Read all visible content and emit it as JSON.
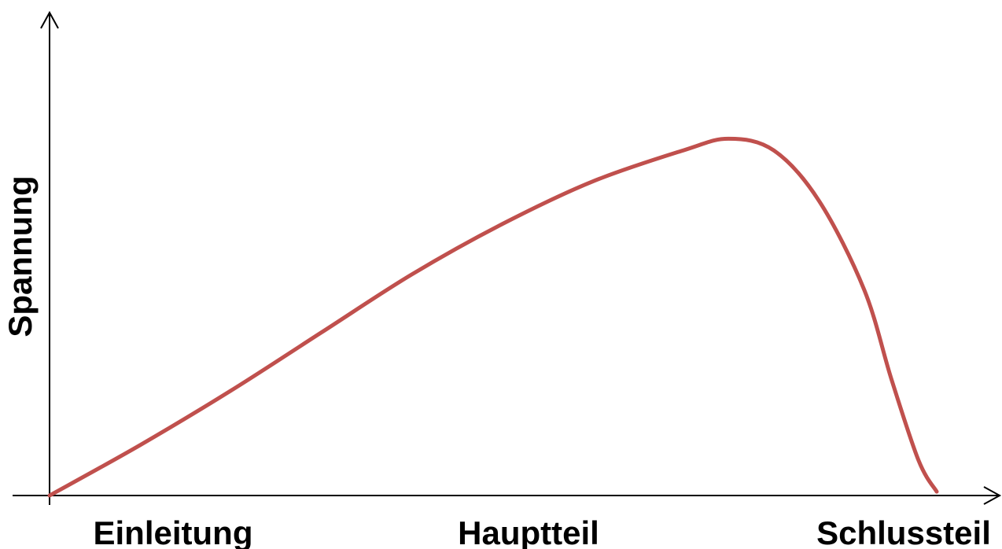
{
  "chart_data": {
    "type": "line",
    "title": "",
    "xlabel": "",
    "ylabel": "Spannung",
    "categories": [
      "Einleitung",
      "Hauptteil",
      "Schlussteil"
    ],
    "grid": false,
    "legend": "none",
    "colors": {
      "curve": "#c0504d",
      "axes": "#000000"
    },
    "xlim": [
      0,
      100
    ],
    "ylim": [
      0,
      100
    ],
    "series": [
      {
        "values": [
          [
            0,
            0
          ],
          [
            10,
            13
          ],
          [
            20,
            27
          ],
          [
            30,
            42
          ],
          [
            40,
            57
          ],
          [
            50,
            70
          ],
          [
            60,
            81
          ],
          [
            70,
            89
          ],
          [
            75,
            92
          ],
          [
            80,
            89
          ],
          [
            85,
            76
          ],
          [
            90,
            53
          ],
          [
            93,
            30
          ],
          [
            96,
            9
          ],
          [
            98,
            1
          ]
        ]
      }
    ]
  }
}
